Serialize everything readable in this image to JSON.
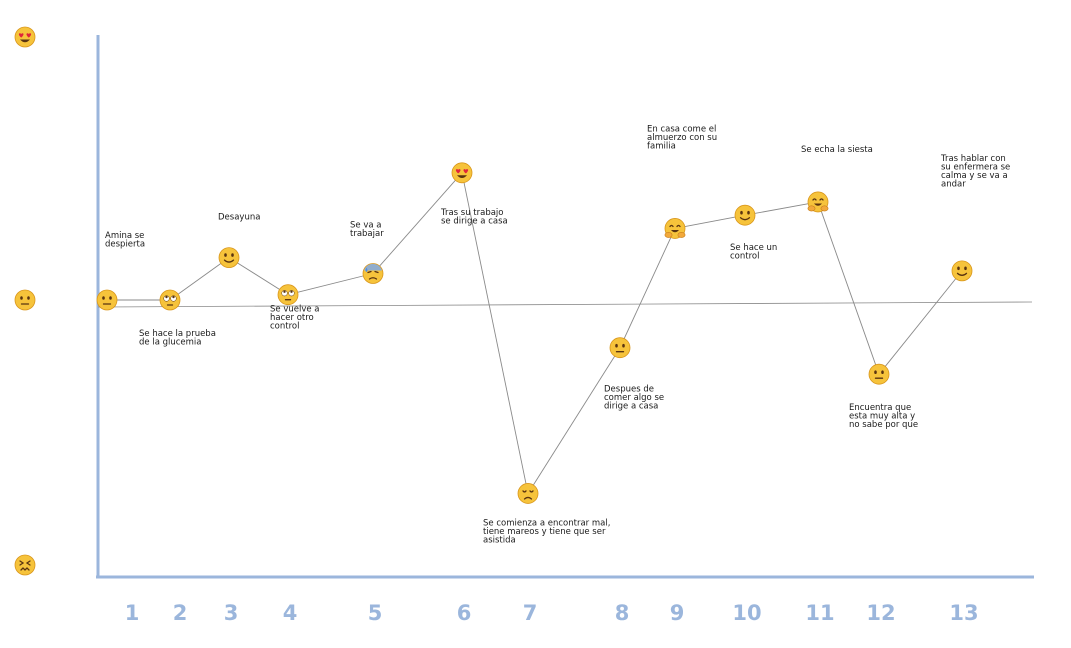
{
  "chart_data": {
    "type": "line",
    "title": "",
    "xlabel": "",
    "ylabel": "",
    "grid": false,
    "x": [
      1,
      2,
      3,
      4,
      5,
      6,
      7,
      8,
      9,
      10,
      11,
      12,
      13
    ],
    "tick_labels": [
      "1",
      "2",
      "3",
      "4",
      "5",
      "6",
      "7",
      "8",
      "9",
      "10",
      "11",
      "12",
      "13"
    ],
    "ylim": [
      -1,
      1
    ],
    "y_scale_markers": [
      {
        "value": 1,
        "icon": "heart-eyes-face-icon"
      },
      {
        "value": 0,
        "icon": "neutral-face-icon"
      },
      {
        "value": -1,
        "icon": "confounded-face-icon"
      }
    ],
    "series": [
      {
        "values": [
          0,
          0,
          0.16,
          0.02,
          0.1,
          0.48,
          -0.73,
          -0.18,
          0.27,
          0.32,
          0.37,
          -0.28,
          0.11
        ]
      }
    ],
    "point_icons": [
      "neutral-face-icon",
      "rolling-eyes-face-icon",
      "slightly-smiling-face-icon",
      "rolling-eyes-face-icon",
      "anxious-sweat-face-icon",
      "heart-eyes-face-icon",
      "disappointed-face-icon",
      "neutral-face-icon",
      "hugging-face-icon",
      "slightly-smiling-face-icon",
      "hugging-face-icon",
      "neutral-face-icon",
      "slightly-smiling-face-icon"
    ],
    "annotations": [
      {
        "point": 1,
        "text": [
          "Amina se",
          "despierta"
        ]
      },
      {
        "point": 2,
        "text": [
          "Se hace la prueba",
          "de la glucemia"
        ]
      },
      {
        "point": 3,
        "text": [
          "Desayuna"
        ]
      },
      {
        "point": 4,
        "text": [
          "Se vuelve a",
          "hacer otro",
          "control"
        ]
      },
      {
        "point": 5,
        "text": [
          "Se va a",
          "trabajar"
        ]
      },
      {
        "point": 6,
        "text": [
          "Tras su trabajo",
          "se dirige a casa"
        ]
      },
      {
        "point": 7,
        "text": [
          "Se comienza a encontrar mal,",
          "tiene mareos y tiene que ser",
          "asistida"
        ]
      },
      {
        "point": 8,
        "text": [
          "Despues de",
          "comer algo se",
          "dirige a casa"
        ]
      },
      {
        "point": 9,
        "text": [
          "En casa come el",
          "almuerzo con su",
          "familia"
        ]
      },
      {
        "point": 10,
        "text": [
          "Se hace un",
          "control"
        ]
      },
      {
        "point": 11,
        "text": [
          "Se echa la siesta"
        ]
      },
      {
        "point": 12,
        "text": [
          "Encuentra que",
          "esta muy alta y",
          "no sabe por que"
        ]
      },
      {
        "point": 13,
        "text": [
          "Tras hablar con",
          "su enfermera se",
          "calma y se va a",
          "andar"
        ]
      }
    ],
    "colors": {
      "axis": "#9bb6dc",
      "tick_label": "#9bb6dc",
      "line": "#8a8a8a",
      "baseline": "#8a8a8a"
    }
  }
}
